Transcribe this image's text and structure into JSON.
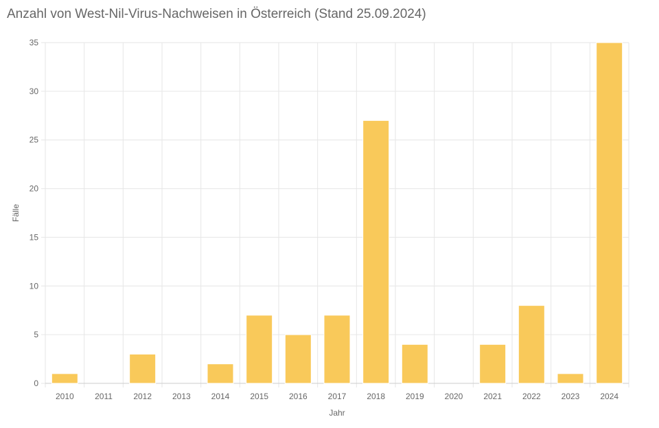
{
  "chart_data": {
    "type": "bar",
    "title": "Anzahl von West-Nil-Virus-Nachweisen in Österreich (Stand 25.09.2024)",
    "xlabel": "Jahr",
    "ylabel": "Fälle",
    "categories": [
      "2010",
      "2011",
      "2012",
      "2013",
      "2014",
      "2015",
      "2016",
      "2017",
      "2018",
      "2019",
      "2020",
      "2021",
      "2022",
      "2023",
      "2024"
    ],
    "values": [
      1,
      0,
      3,
      0,
      2,
      7,
      5,
      7,
      27,
      4,
      0,
      4,
      8,
      1,
      35
    ],
    "ylim": [
      0,
      35
    ],
    "yticks": [
      0,
      5,
      10,
      15,
      20,
      25,
      30,
      35
    ],
    "grid": true,
    "legend": "none",
    "colors": {
      "bar": "#f9c95a",
      "grid": "#e6e6e6",
      "text": "#666666"
    }
  }
}
